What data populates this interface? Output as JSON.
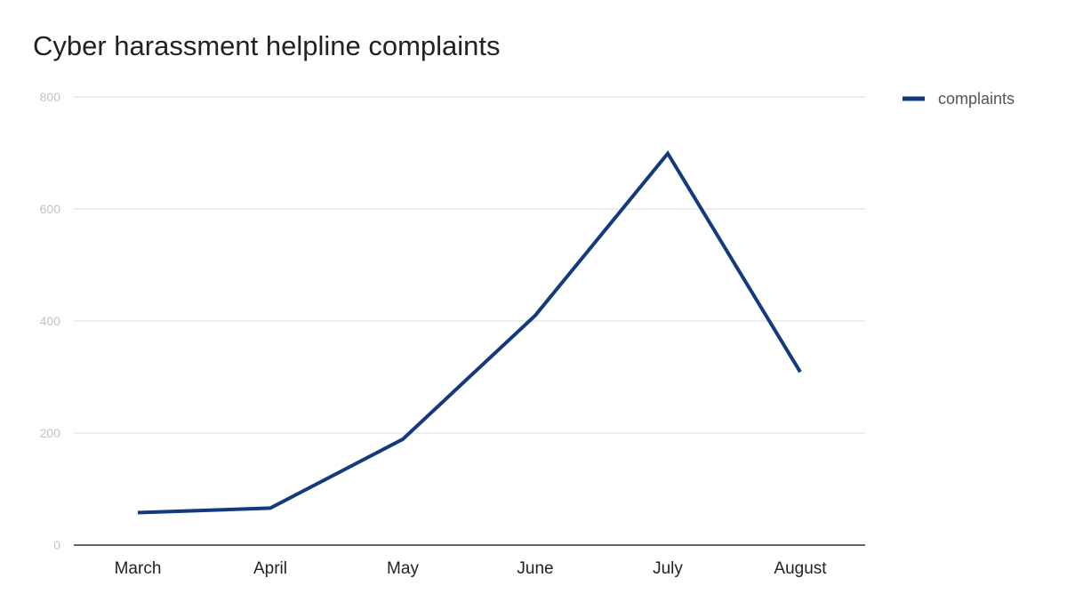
{
  "chart_data": {
    "type": "line",
    "title": "Cyber harassment helpline complaints",
    "xlabel": "",
    "ylabel": "",
    "categories": [
      "March",
      "April",
      "May",
      "June",
      "July",
      "August"
    ],
    "series": [
      {
        "name": "complaints",
        "values": [
          58,
          66,
          189,
          410,
          699,
          309
        ],
        "color": "#133a7c"
      }
    ],
    "ylim": [
      0,
      800
    ],
    "yticks": [
      "0",
      "200",
      "400",
      "600",
      "800"
    ],
    "grid": true,
    "legend_position": "top-right"
  }
}
